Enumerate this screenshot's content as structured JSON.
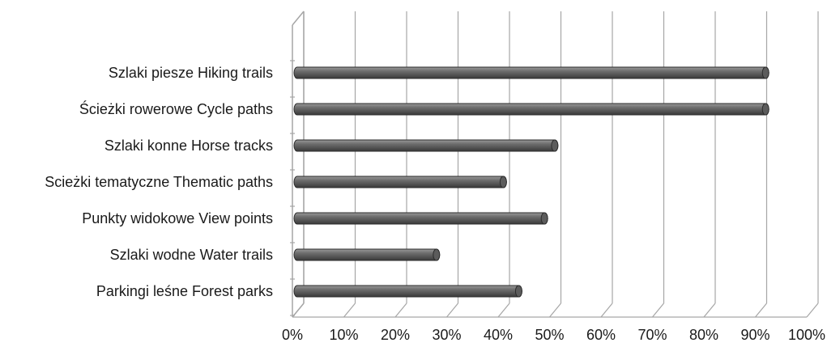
{
  "chart_data": {
    "type": "bar",
    "orientation": "horizontal",
    "style": "3d-cylinder",
    "title": "",
    "xlabel": "",
    "ylabel": "",
    "categories": [
      "Szlaki piesze Hiking trails",
      "Ścieżki rowerowe Cycle paths",
      "Szlaki konne Horse tracks",
      "Scieżki tematyczne Thematic paths",
      "Punkty widokowe View points",
      "Szlaki wodne Water trails",
      "Parkingi leśne Forest parks"
    ],
    "values": [
      92,
      92,
      51,
      41,
      49,
      28,
      44
    ],
    "xlim": [
      0,
      100
    ],
    "ticks": [
      "0%",
      "10%",
      "20%",
      "30%",
      "40%",
      "50%",
      "60%",
      "70%",
      "80%",
      "90%",
      "100%"
    ],
    "grid": true,
    "legend": "none",
    "colors": {
      "bar": "#6e6e6e",
      "bar_highlight": "#9a9a9a",
      "bar_shadow": "#3a3a3a",
      "grid": "#a6a6a6",
      "text": "#1a1a1a"
    }
  }
}
